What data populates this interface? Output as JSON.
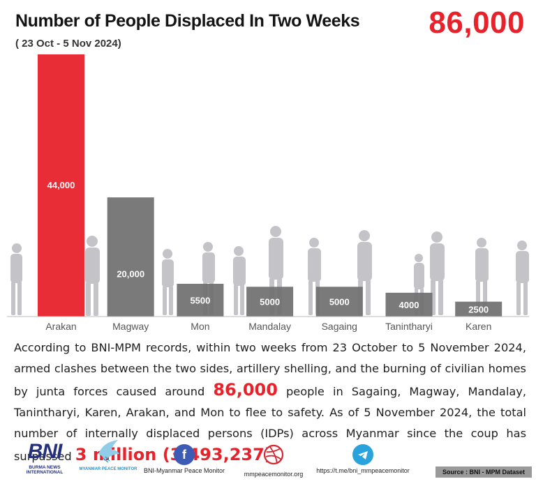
{
  "header": {
    "title": "Number of People Displaced In Two Weeks",
    "subtitle": "( 23 Oct - 5 Nov 2024)",
    "total": "86,000"
  },
  "chart_data": {
    "type": "bar",
    "title": "Number of People Displaced In Two Weeks",
    "categories": [
      "Arakan",
      "Magway",
      "Mon",
      "Mandalay",
      "Sagaing",
      "Tanintharyi",
      "Karen"
    ],
    "values": [
      44000,
      20000,
      5500,
      5000,
      5000,
      4000,
      2500
    ],
    "data_labels": [
      "44,000",
      "20,000",
      "5500",
      "5000",
      "5000",
      "4000",
      "2500"
    ],
    "ylim": [
      0,
      44000
    ],
    "colors": {
      "highlight": "#e8222b",
      "default": "#6f6f6f"
    },
    "grid": false
  },
  "body": {
    "part1": "According to BNI-MPM records, within two weeks from 23 October to 5 November 2024, armed clashes between the two sides, artillery shelling, and the burning of civilian homes by junta forces caused around ",
    "highlight1": "86,000",
    "part2": " people in Sagaing, Magway, Mandalay, Tanintharyi, Karen, Arakan, and Mon to flee to safety. As of 5 November 2024, the total number of internally displaced persons (IDPs) across Myanmar since the coup has surpassed ",
    "highlight2": "3 million (3,493,237)",
    "part3": "."
  },
  "footer": {
    "bni_mark": "BNI",
    "bni_name": "BURMA NEWS INTERNATIONAL",
    "mpm_name": "MYANMAR PEACE MONITOR",
    "facebook_label": "BNI-Myanmar Peace Monitor",
    "website_label": "mmpeacemonitor.org",
    "telegram_label": "https://t.me/bni_mmpeacemonitor",
    "source": "Source : BNI - MPM Dataset",
    "icons": [
      "facebook-icon",
      "dribbble-icon",
      "telegram-icon"
    ]
  }
}
